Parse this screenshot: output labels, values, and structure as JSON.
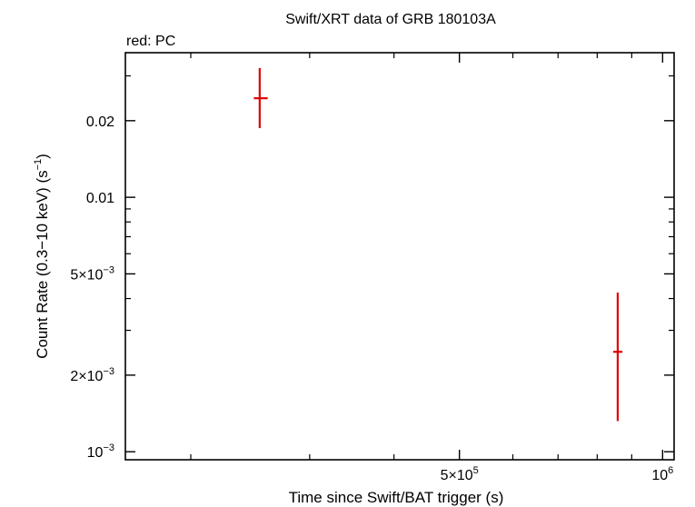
{
  "chart_data": {
    "type": "scatter",
    "title": "Swift/XRT data of GRB 180103A",
    "subtitle": "red: PC",
    "xlabel": "Time since Swift/BAT trigger (s)",
    "ylabel": {
      "prefix": "Count Rate (0.3−10 keV) (s",
      "sup": "−1",
      "suffix": ")"
    },
    "x_scale": "log",
    "y_scale": "log",
    "xlim": [
      160000,
      1040000
    ],
    "ylim": [
      0.00093,
      0.037
    ],
    "x_ticks": [
      {
        "value": 500000,
        "mantissa": "5×10",
        "exp": "5"
      },
      {
        "value": 1000000,
        "mantissa": "10",
        "exp": "6"
      }
    ],
    "y_ticks": [
      {
        "value": 0.02,
        "mantissa": "0.02",
        "exp": ""
      },
      {
        "value": 0.01,
        "mantissa": "0.01",
        "exp": ""
      },
      {
        "value": 0.005,
        "mantissa": "5×10",
        "exp": "−3"
      },
      {
        "value": 0.002,
        "mantissa": "2×10",
        "exp": "−3"
      },
      {
        "value": 0.001,
        "mantissa": "10",
        "exp": "−3"
      }
    ],
    "series": [
      {
        "color": "#e00000",
        "points": [
          {
            "x": 253000,
            "x_lo": 248000,
            "x_hi": 260000,
            "y": 0.0245,
            "y_lo": 0.0187,
            "y_hi": 0.0322
          },
          {
            "x": 858000,
            "x_lo": 845000,
            "x_hi": 872000,
            "y": 0.00247,
            "y_lo": 0.00132,
            "y_hi": 0.00422
          }
        ]
      }
    ]
  }
}
